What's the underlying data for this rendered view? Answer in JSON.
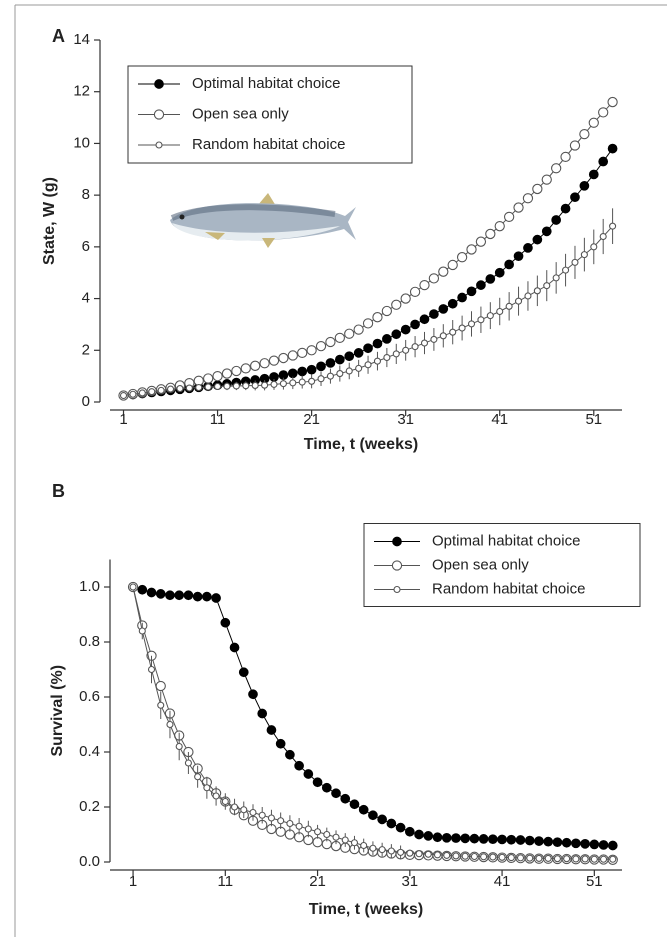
{
  "chart_data": [
    {
      "type": "line",
      "panel": "A",
      "ylabel": "State, W (g)",
      "xlabel": "Time, t (weeks)",
      "x": [
        1,
        2,
        3,
        4,
        5,
        6,
        7,
        8,
        9,
        10,
        11,
        12,
        13,
        14,
        15,
        16,
        17,
        18,
        19,
        20,
        21,
        22,
        23,
        24,
        25,
        26,
        27,
        28,
        29,
        30,
        31,
        32,
        33,
        34,
        35,
        36,
        37,
        38,
        39,
        40,
        41,
        42,
        43,
        44,
        45,
        46,
        47,
        48,
        49,
        50,
        51,
        52,
        53
      ],
      "xlim": [
        -1.5,
        54
      ],
      "xticks": [
        1,
        11,
        21,
        31,
        41,
        51
      ],
      "ylim": [
        0,
        14
      ],
      "yticks": [
        0,
        2,
        4,
        6,
        8,
        10,
        12,
        14
      ],
      "legend": "upper left",
      "series": [
        {
          "name": "Optimal habitat choice",
          "color": "#000000",
          "marker": "filled",
          "values": [
            0.25,
            0.29,
            0.33,
            0.37,
            0.41,
            0.45,
            0.49,
            0.53,
            0.57,
            0.61,
            0.65,
            0.7,
            0.75,
            0.8,
            0.85,
            0.9,
            0.97,
            1.04,
            1.11,
            1.18,
            1.25,
            1.38,
            1.51,
            1.64,
            1.77,
            1.9,
            2.08,
            2.26,
            2.44,
            2.62,
            2.8,
            3.0,
            3.2,
            3.4,
            3.6,
            3.8,
            4.04,
            4.28,
            4.52,
            4.76,
            5.0,
            5.32,
            5.64,
            5.96,
            6.28,
            6.6,
            7.04,
            7.48,
            7.92,
            8.36,
            8.8,
            9.3,
            9.8
          ]
        },
        {
          "name": "Open sea only",
          "color": "#555555",
          "marker": "open",
          "values": [
            0.25,
            0.31,
            0.37,
            0.43,
            0.49,
            0.55,
            0.64,
            0.73,
            0.82,
            0.91,
            1.0,
            1.1,
            1.2,
            1.3,
            1.4,
            1.5,
            1.6,
            1.7,
            1.8,
            1.9,
            2.0,
            2.16,
            2.32,
            2.48,
            2.64,
            2.8,
            3.04,
            3.28,
            3.52,
            3.76,
            4.0,
            4.26,
            4.52,
            4.78,
            5.04,
            5.3,
            5.6,
            5.9,
            6.2,
            6.5,
            6.8,
            7.16,
            7.52,
            7.88,
            8.24,
            8.6,
            9.04,
            9.48,
            9.92,
            10.36,
            10.8,
            11.2,
            11.6
          ]
        },
        {
          "name": "Random habitat choice",
          "color": "#555555",
          "marker": "small",
          "values": [
            0.25,
            0.3,
            0.35,
            0.4,
            0.45,
            0.5,
            0.52,
            0.54,
            0.56,
            0.58,
            0.6,
            0.61,
            0.62,
            0.63,
            0.64,
            0.65,
            0.68,
            0.71,
            0.74,
            0.77,
            0.8,
            0.9,
            1.0,
            1.1,
            1.2,
            1.3,
            1.44,
            1.58,
            1.72,
            1.86,
            2.0,
            2.14,
            2.28,
            2.42,
            2.56,
            2.7,
            2.86,
            3.02,
            3.18,
            3.34,
            3.5,
            3.7,
            3.9,
            4.1,
            4.3,
            4.5,
            4.8,
            5.1,
            5.4,
            5.7,
            6.0,
            6.4,
            6.8
          ],
          "errors": [
            0,
            0.01,
            0.03,
            0.04,
            0.05,
            0.07,
            0.08,
            0.09,
            0.11,
            0.12,
            0.13,
            0.15,
            0.16,
            0.17,
            0.19,
            0.2,
            0.21,
            0.23,
            0.24,
            0.25,
            0.27,
            0.28,
            0.29,
            0.31,
            0.32,
            0.33,
            0.35,
            0.36,
            0.37,
            0.39,
            0.4,
            0.41,
            0.43,
            0.44,
            0.45,
            0.47,
            0.48,
            0.49,
            0.51,
            0.52,
            0.53,
            0.55,
            0.56,
            0.57,
            0.59,
            0.6,
            0.61,
            0.63,
            0.64,
            0.65,
            0.67,
            0.68,
            0.69
          ]
        }
      ]
    },
    {
      "type": "line",
      "panel": "B",
      "ylabel": "Survival (%)",
      "xlabel": "Time, t (weeks)",
      "x": [
        1,
        2,
        3,
        4,
        5,
        6,
        7,
        8,
        9,
        10,
        11,
        12,
        13,
        14,
        15,
        16,
        17,
        18,
        19,
        20,
        21,
        22,
        23,
        24,
        25,
        26,
        27,
        28,
        29,
        30,
        31,
        32,
        33,
        34,
        35,
        36,
        37,
        38,
        39,
        40,
        41,
        42,
        43,
        44,
        45,
        46,
        47,
        48,
        49,
        50,
        51,
        52,
        53
      ],
      "xlim": [
        -1.5,
        54
      ],
      "xticks": [
        1,
        11,
        21,
        31,
        41,
        51
      ],
      "ylim": [
        0,
        1.1
      ],
      "yticks": [
        {
          "value": 0,
          "label": "0.0"
        },
        0.2,
        0.4,
        0.6,
        0.8,
        {
          "value": 1,
          "label": "1.0"
        }
      ],
      "legend": "upper right",
      "series": [
        {
          "name": "Optimal habitat choice",
          "color": "#000000",
          "marker": "filled",
          "values": [
            1.0,
            0.99,
            0.98,
            0.975,
            0.97,
            0.97,
            0.97,
            0.965,
            0.965,
            0.96,
            0.87,
            0.78,
            0.69,
            0.61,
            0.54,
            0.48,
            0.43,
            0.39,
            0.35,
            0.32,
            0.29,
            0.27,
            0.25,
            0.23,
            0.21,
            0.19,
            0.17,
            0.155,
            0.14,
            0.125,
            0.11,
            0.1,
            0.095,
            0.09,
            0.088,
            0.087,
            0.086,
            0.085,
            0.084,
            0.083,
            0.082,
            0.081,
            0.08,
            0.078,
            0.076,
            0.074,
            0.072,
            0.07,
            0.068,
            0.066,
            0.064,
            0.062,
            0.06
          ]
        },
        {
          "name": "Open sea only",
          "color": "#555555",
          "marker": "open",
          "values": [
            1.0,
            0.86,
            0.75,
            0.64,
            0.54,
            0.46,
            0.4,
            0.34,
            0.29,
            0.25,
            0.22,
            0.19,
            0.17,
            0.15,
            0.135,
            0.12,
            0.11,
            0.1,
            0.09,
            0.08,
            0.072,
            0.065,
            0.058,
            0.052,
            0.047,
            0.042,
            0.038,
            0.034,
            0.031,
            0.028,
            0.026,
            0.025,
            0.024,
            0.023,
            0.022,
            0.021,
            0.02,
            0.019,
            0.018,
            0.017,
            0.016,
            0.015,
            0.014,
            0.013,
            0.012,
            0.012,
            0.011,
            0.011,
            0.01,
            0.01,
            0.009,
            0.009,
            0.008
          ]
        },
        {
          "name": "Random habitat choice",
          "color": "#555555",
          "marker": "small",
          "values": [
            1.0,
            0.84,
            0.7,
            0.57,
            0.5,
            0.42,
            0.36,
            0.31,
            0.27,
            0.24,
            0.22,
            0.2,
            0.19,
            0.18,
            0.17,
            0.16,
            0.15,
            0.14,
            0.13,
            0.12,
            0.11,
            0.1,
            0.09,
            0.08,
            0.07,
            0.06,
            0.05,
            0.045,
            0.04,
            0.035,
            0.032,
            0.03,
            0.028,
            0.026,
            0.024,
            0.022,
            0.021,
            0.02,
            0.019,
            0.018,
            0.017,
            0.016,
            0.015,
            0.014,
            0.013,
            0.013,
            0.012,
            0.012,
            0.011,
            0.011,
            0.01,
            0.01,
            0.01
          ],
          "errors": [
            0,
            0.03,
            0.05,
            0.05,
            0.05,
            0.05,
            0.04,
            0.04,
            0.04,
            0.035,
            0.03,
            0.03,
            0.03,
            0.03,
            0.03,
            0.03,
            0.03,
            0.03,
            0.03,
            0.03,
            0.025,
            0.025,
            0.025,
            0.025,
            0.025,
            0.025,
            0.025,
            0.025,
            0.025,
            0.025,
            0.01,
            0.01,
            0.01,
            0.01,
            0.01,
            0.01,
            0.01,
            0.01,
            0.01,
            0.01,
            0.01,
            0.01,
            0.01,
            0.01,
            0.01,
            0.01,
            0.01,
            0.01,
            0.01,
            0.01,
            0.01,
            0.01,
            0.01
          ]
        }
      ]
    }
  ]
}
